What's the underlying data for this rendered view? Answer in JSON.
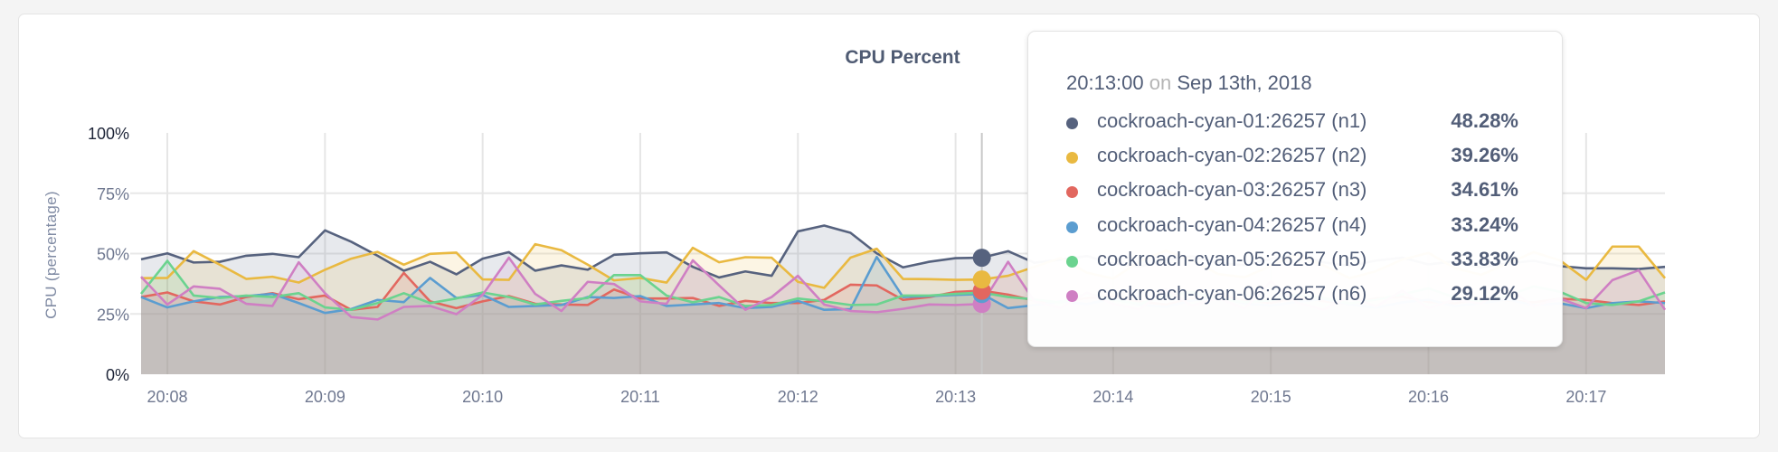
{
  "chart_data": {
    "type": "area",
    "title": "CPU Percent",
    "ylabel": "CPU (percentage)",
    "xlabel": "",
    "ylim": [
      0,
      100
    ],
    "yticks": [
      "0%",
      "25%",
      "50%",
      "75%",
      "100%"
    ],
    "ytick_values": [
      0,
      25,
      50,
      75,
      100
    ],
    "xticks": [
      "20:08",
      "20:09",
      "20:10",
      "20:11",
      "20:12",
      "20:13",
      "20:14",
      "20:15",
      "20:16",
      "20:17"
    ],
    "x_start": "20:07:40",
    "x_end": "20:17:20",
    "x_step_seconds": 10,
    "grid": true,
    "series": [
      {
        "name": "cockroach-cyan-01:26257 (n1)",
        "color": "#56627e",
        "values": [
          47.6,
          50.1,
          46.3,
          46.6,
          49.1,
          49.9,
          48.5,
          59.6,
          54.9,
          49.1,
          42.9,
          46.6,
          41.4,
          47.9,
          50.6,
          42.9,
          45.1,
          43.3,
          49.5,
          50.1,
          50.5,
          44.5,
          40.1,
          42.6,
          40.8,
          59.2,
          61.6,
          58.6,
          50.1,
          44.3,
          46.6,
          48.1,
          48.28,
          51.0,
          46.2,
          47.5,
          49.0,
          45.8,
          44.6,
          47.3,
          48.9,
          46.0,
          45.2,
          47.8,
          49.5,
          46.4,
          44.9,
          47.1,
          48.3,
          45.5,
          46.8,
          44.2,
          45.9,
          47.0,
          44.8,
          43.9,
          43.9,
          43.6,
          44.5
        ]
      },
      {
        "name": "cockroach-cyan-02:26257 (n2)",
        "color": "#e9b941",
        "values": [
          39.8,
          39.9,
          51,
          45.4,
          39.5,
          40.4,
          38,
          43.3,
          47.9,
          50.7,
          45.4,
          49.9,
          50.4,
          39.3,
          39.1,
          53.9,
          51.4,
          45.4,
          38.9,
          39.9,
          38,
          52.4,
          46.4,
          48.5,
          48.3,
          38.3,
          35.8,
          48.3,
          52,
          39.5,
          39.4,
          39.1,
          39.26,
          40.8,
          44.5,
          48.2,
          42.1,
          39.6,
          46.8,
          51.2,
          47.3,
          41.5,
          40.2,
          44.9,
          49.6,
          45.1,
          39.8,
          42.7,
          47.5,
          50.3,
          44.0,
          41.2,
          45.8,
          50.6,
          47.2,
          39.1,
          52.9,
          52.9,
          39.8
        ]
      },
      {
        "name": "cockroach-cyan-03:26257 (n3)",
        "color": "#e2675f",
        "values": [
          32,
          33.9,
          30.2,
          28.9,
          32,
          33.6,
          31.1,
          32.6,
          26.7,
          27.9,
          42,
          30.2,
          27.4,
          30.2,
          32.4,
          29.2,
          28.9,
          28.7,
          35.1,
          31.4,
          31.4,
          31.6,
          28.3,
          30.4,
          29.5,
          29.5,
          30.8,
          37.1,
          36.8,
          30.8,
          32,
          34.1,
          34.61,
          33.0,
          30.5,
          29.8,
          31.6,
          32.4,
          30.1,
          28.9,
          31.2,
          33.0,
          30.7,
          29.6,
          31.8,
          30.3,
          29.1,
          31.5,
          32.2,
          30.0,
          29.4,
          31.1,
          30.6,
          29.8,
          31.3,
          30.8,
          29.5,
          28.7,
          30.2
        ]
      },
      {
        "name": "cockroach-cyan-04:26257 (n4)",
        "color": "#5b9dd0",
        "values": [
          32,
          27.7,
          30.2,
          32,
          32.4,
          33.3,
          29.5,
          25.4,
          27,
          30.8,
          29.9,
          39.9,
          31.6,
          32.9,
          27.9,
          28.3,
          28.7,
          32,
          31.6,
          32.4,
          28.3,
          28.9,
          29.5,
          27.4,
          27.9,
          30.4,
          26.7,
          27,
          48.6,
          32,
          32.4,
          32.9,
          33.24,
          27.4,
          28.6,
          30.2,
          29.1,
          31.4,
          28.8,
          27.9,
          30.6,
          32.1,
          29.3,
          28.4,
          30.0,
          31.2,
          28.9,
          27.6,
          29.8,
          30.9,
          28.2,
          29.5,
          31.0,
          28.7,
          29.4,
          27.4,
          29.5,
          30.2,
          29.5
        ]
      },
      {
        "name": "cockroach-cyan-05:26257 (n5)",
        "color": "#6bd38f",
        "values": [
          33.3,
          47,
          32.6,
          31.6,
          32.6,
          32,
          33.6,
          27.7,
          26.7,
          29.5,
          33.6,
          29.5,
          31.4,
          33.9,
          32,
          28.9,
          30.4,
          31.6,
          41.1,
          41.1,
          32.6,
          29.8,
          32,
          28.3,
          28.7,
          31.4,
          30.2,
          28.7,
          28.9,
          32.6,
          32.6,
          33.3,
          33.83,
          32.0,
          31.0,
          29.7,
          33.5,
          30.8,
          29.2,
          32.4,
          34.0,
          31.3,
          29.9,
          30.6,
          32.8,
          31.7,
          29.4,
          30.9,
          33.1,
          35.6,
          31.8,
          30.2,
          32.5,
          36.4,
          34.2,
          29.5,
          28.7,
          30.2,
          33.9
        ]
      },
      {
        "name": "cockroach-cyan-06:26257 (n6)",
        "color": "#cf7fc3",
        "values": [
          40.4,
          28.9,
          36.4,
          35.4,
          29.2,
          28.3,
          46.4,
          33.6,
          23.7,
          22.7,
          27.9,
          28.3,
          24.9,
          32.9,
          48.3,
          33.3,
          26.2,
          38.3,
          37.4,
          30.2,
          29.2,
          47.2,
          36.8,
          26.7,
          32,
          40.8,
          28.9,
          26.2,
          25.7,
          27.1,
          28.9,
          28.7,
          29.12,
          46.6,
          30.2,
          27.5,
          33.8,
          29.1,
          26.9,
          35.2,
          28.4,
          31.6,
          27.2,
          38.5,
          29.7,
          26.8,
          32.3,
          28.1,
          34.6,
          27.4,
          30.9,
          29.3,
          36.1,
          28.2,
          31.4,
          27.4,
          39,
          43.1,
          26.7
        ]
      }
    ],
    "hover": {
      "time": "20:13:00"
    }
  },
  "tooltip": {
    "time": "20:13:00",
    "on": "on",
    "date": "Sep 13th, 2018",
    "rows": [
      {
        "name": "cockroach-cyan-01:26257 (n1)",
        "value": "48.28%",
        "color": "#56627e"
      },
      {
        "name": "cockroach-cyan-02:26257 (n2)",
        "value": "39.26%",
        "color": "#e9b941"
      },
      {
        "name": "cockroach-cyan-03:26257 (n3)",
        "value": "34.61%",
        "color": "#e2675f"
      },
      {
        "name": "cockroach-cyan-04:26257 (n4)",
        "value": "33.24%",
        "color": "#5b9dd0"
      },
      {
        "name": "cockroach-cyan-05:26257 (n5)",
        "value": "33.83%",
        "color": "#6bd38f"
      },
      {
        "name": "cockroach-cyan-06:26257 (n6)",
        "value": "29.12%",
        "color": "#cf7fc3"
      }
    ]
  }
}
